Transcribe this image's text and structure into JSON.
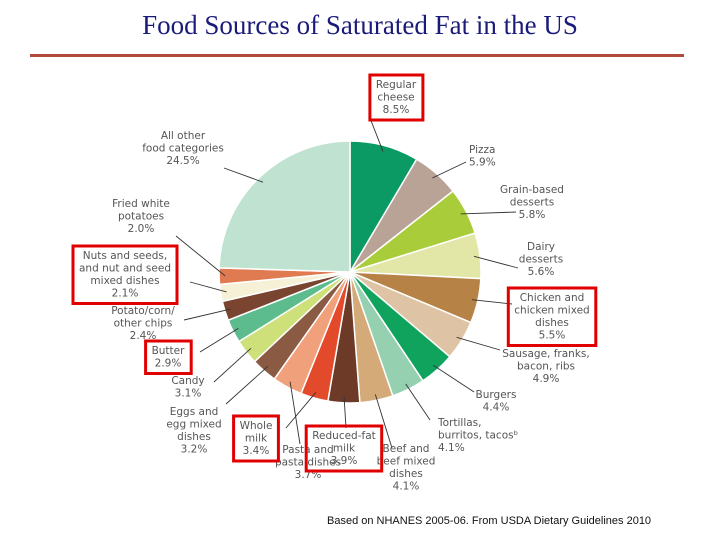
{
  "title": "Food Sources of Saturated Fat in the US",
  "source": "Based on NHANES 2005-06. From USDA Dietary Guidelines 2010",
  "chart_data": {
    "type": "pie",
    "title": "Food Sources of Saturated Fat in the US",
    "slices": [
      {
        "label": [
          "Regular",
          "cheese",
          "8.5%"
        ],
        "value": 8.5,
        "color": "#0c9a64",
        "highlight": true
      },
      {
        "label": [
          "Pizza",
          "5.9%"
        ],
        "value": 5.9,
        "color": "#b9a296",
        "highlight": false
      },
      {
        "label": [
          "Grain-based",
          "desserts",
          "5.8%"
        ],
        "value": 5.8,
        "color": "#a9cd3a",
        "highlight": false
      },
      {
        "label": [
          "Dairy",
          "desserts",
          "5.6%"
        ],
        "value": 5.6,
        "color": "#e2e6a6",
        "highlight": false
      },
      {
        "label": [
          "Chicken and",
          "chicken mixed",
          "dishes",
          "5.5%"
        ],
        "value": 5.5,
        "color": "#b78245",
        "highlight": true
      },
      {
        "label": [
          "Sausage, franks,",
          "bacon, ribs",
          "4.9%"
        ],
        "value": 4.9,
        "color": "#dec4a4",
        "highlight": false
      },
      {
        "label": [
          "Burgers",
          "4.4%"
        ],
        "value": 4.4,
        "color": "#10a35e",
        "highlight": false
      },
      {
        "label": [
          "Tortillas,",
          "burritos, tacosᵇ",
          "4.1%"
        ],
        "value": 4.1,
        "color": "#95d0b0",
        "highlight": false
      },
      {
        "label": [
          "Beef and",
          "beef mixed",
          "dishes",
          "4.1%"
        ],
        "value": 4.1,
        "color": "#d3aa78",
        "highlight": false
      },
      {
        "label": [
          "Reduced-fat",
          "milk",
          "3.9%"
        ],
        "value": 3.9,
        "color": "#6d3a28",
        "highlight": true
      },
      {
        "label": [
          "Whole",
          "milk",
          "3.4%"
        ],
        "value": 3.4,
        "color": "#e34a2c",
        "highlight": true
      },
      {
        "label": [
          "Pasta and",
          "pasta dishes",
          "3.7%"
        ],
        "value": 3.7,
        "color": "#f0a07a",
        "highlight": false
      },
      {
        "label": [
          "Eggs and",
          "egg mixed",
          "dishes",
          "3.2%"
        ],
        "value": 3.2,
        "color": "#8a5a42",
        "highlight": false
      },
      {
        "label": [
          "Candy",
          "3.1%"
        ],
        "value": 3.1,
        "color": "#cde07a",
        "highlight": false
      },
      {
        "label": [
          "Butter",
          "2.9%"
        ],
        "value": 2.9,
        "color": "#5cbc8e",
        "highlight": true
      },
      {
        "label": [
          "Potato/corn/",
          "other chips",
          "2.4%"
        ],
        "value": 2.4,
        "color": "#7a4530",
        "highlight": false
      },
      {
        "label": [
          "Nuts and seeds,",
          "and nut and seed",
          "mixed dishes",
          "2.1%"
        ],
        "value": 2.1,
        "color": "#f6f1d6",
        "highlight": true
      },
      {
        "label": [
          "Fried white",
          "potatoes",
          "2.0%"
        ],
        "value": 2.0,
        "color": "#e07a50",
        "highlight": false
      },
      {
        "label": [
          "All other",
          "food categories",
          "24.5%"
        ],
        "value": 24.5,
        "color": "#bfe3d0",
        "highlight": false
      }
    ]
  }
}
